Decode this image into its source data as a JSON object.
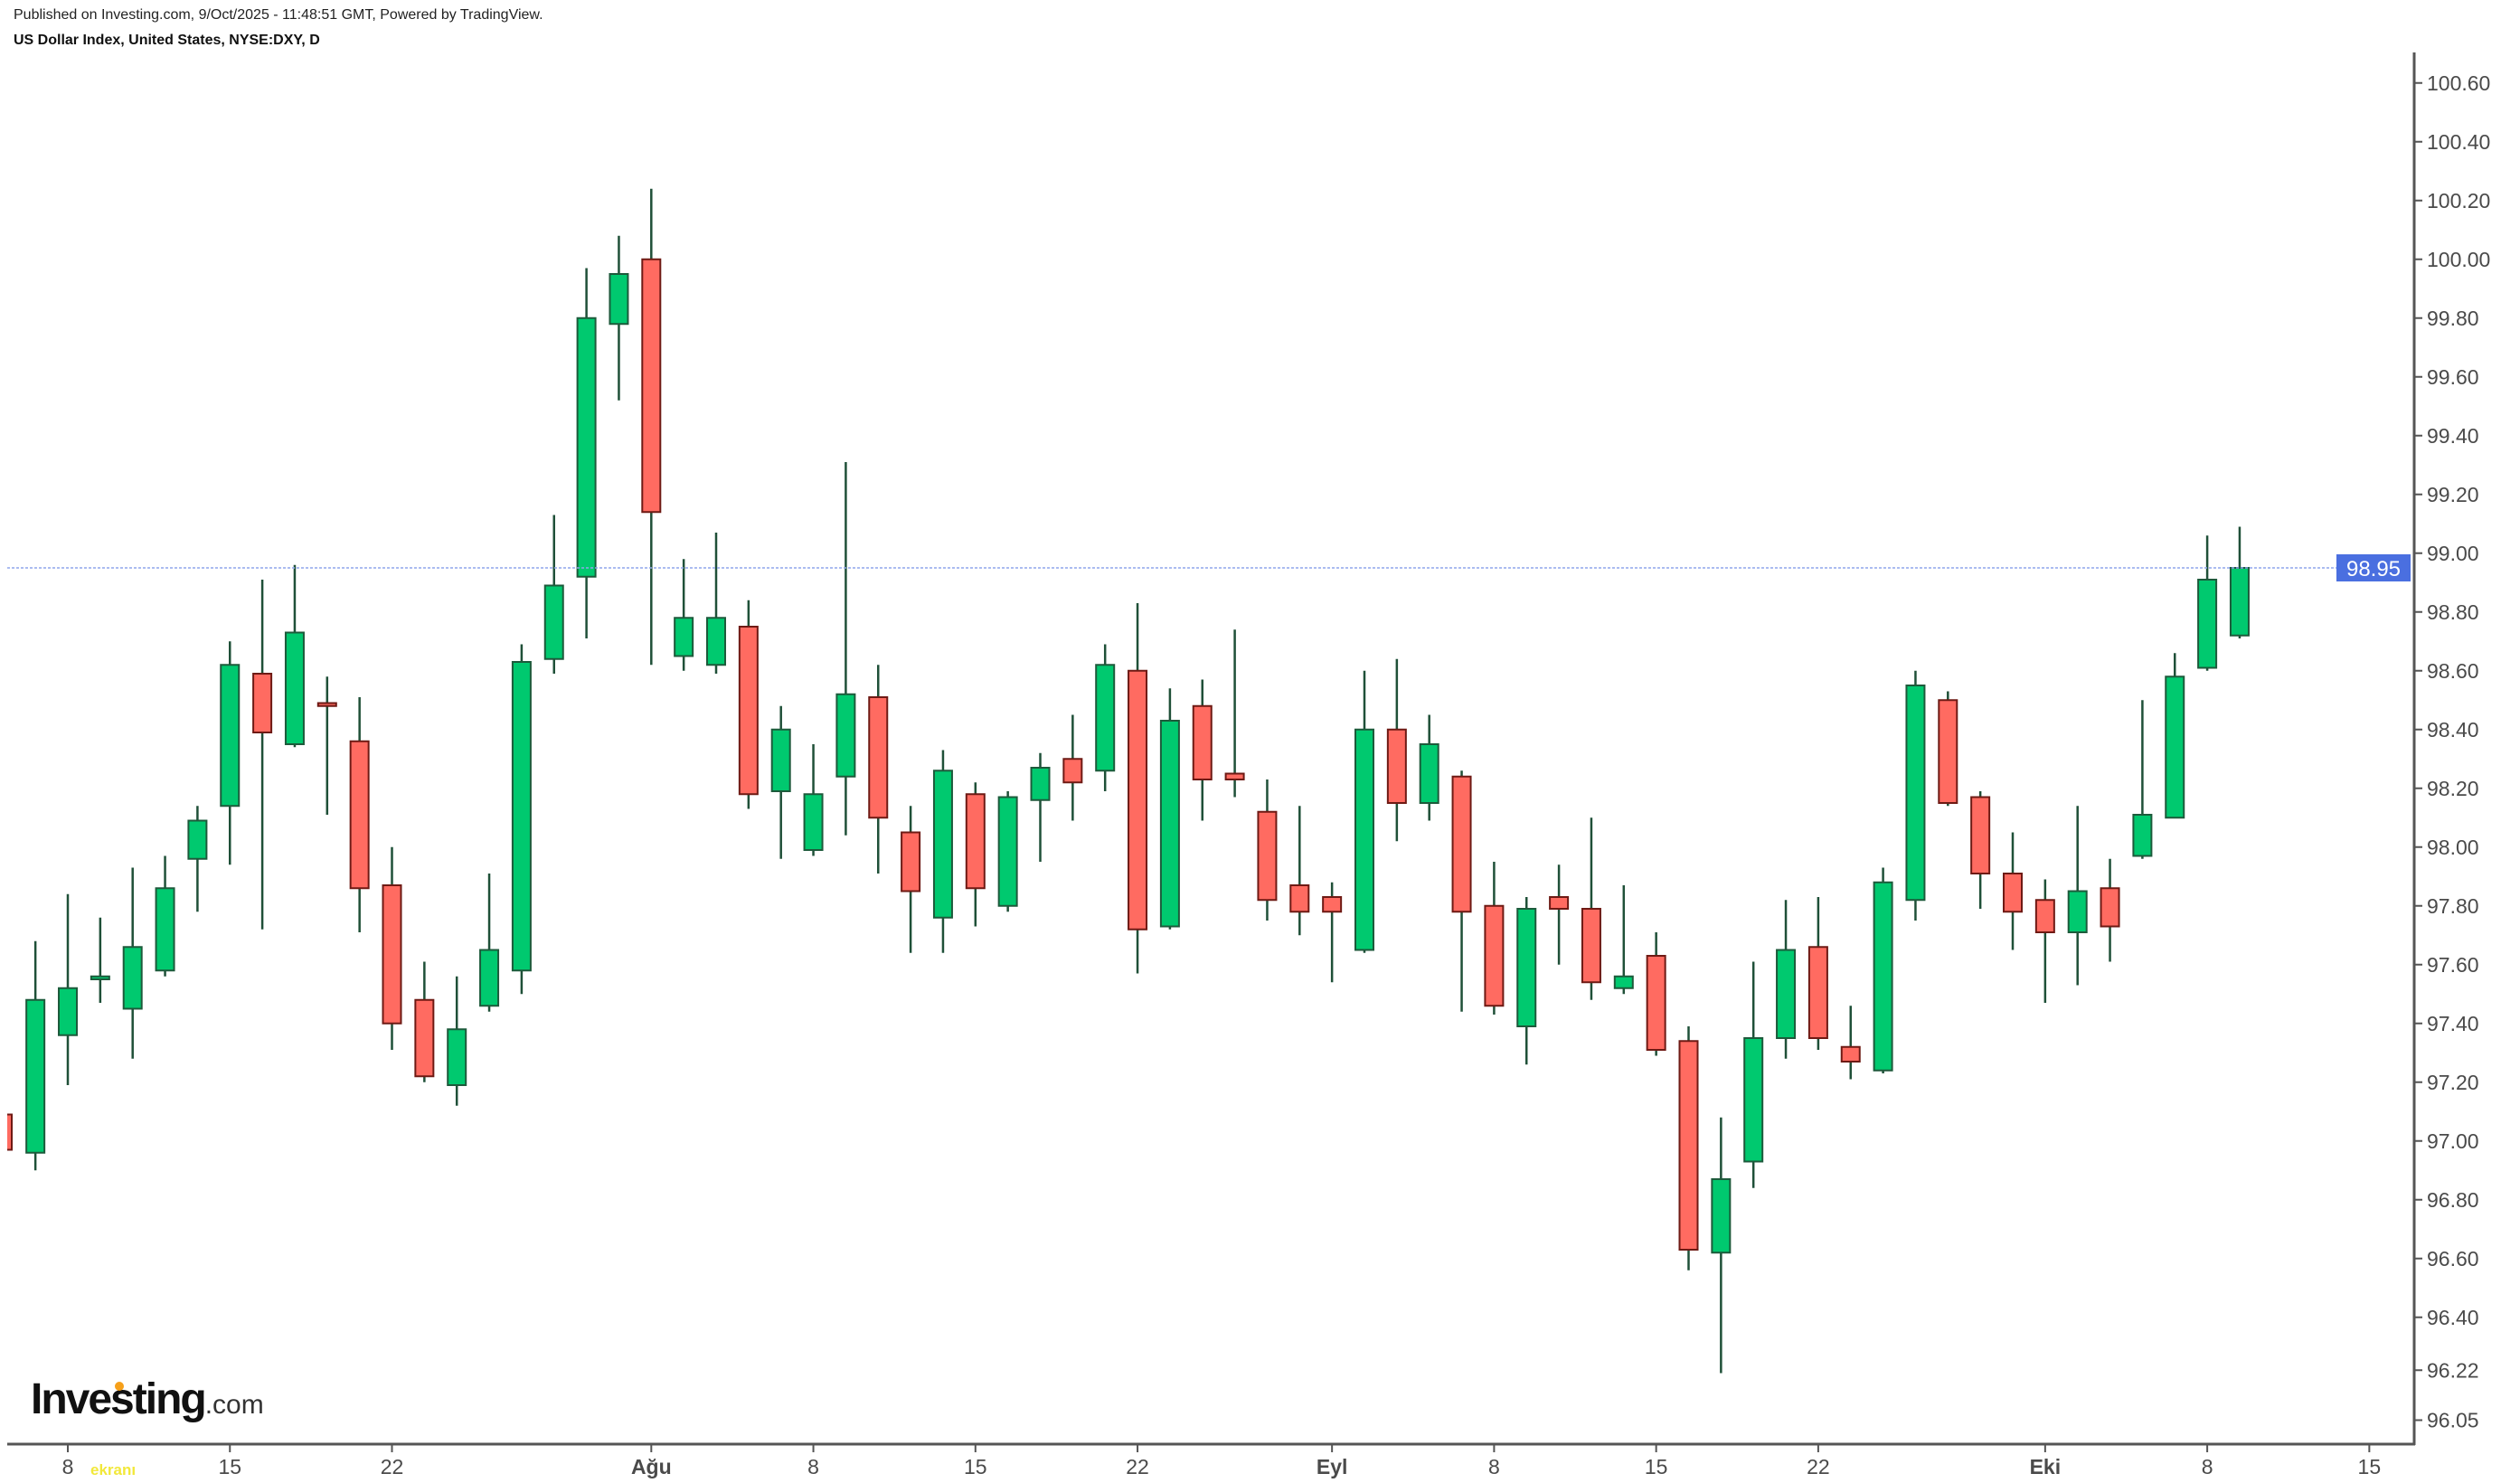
{
  "header": {
    "published": "Published on Investing.com, 9/Oct/2025 - 11:48:51 GMT, Powered by TradingView.",
    "title": "US Dollar Index, United States, NYSE:DXY, D"
  },
  "logo": {
    "main": "Investing",
    "suffix": ".com"
  },
  "watermark": "ekranı",
  "chart_data": {
    "type": "candlestick",
    "title": "US Dollar Index, United States, NYSE:DXY, D",
    "ylim": [
      96.0,
      100.75
    ],
    "grid": false,
    "colors": {
      "up": "#00c96f",
      "down": "#ff6b61",
      "up_border": "#1d5a3b",
      "down_border": "#6e1a14",
      "wick": "#1f5038",
      "price_line": "#8fa6ec",
      "price_label": "#4a6fe0",
      "axis": "#555555"
    },
    "last_price": "98.95",
    "y_ticks": [
      "100.60",
      "100.40",
      "100.20",
      "100.00",
      "99.80",
      "99.60",
      "99.40",
      "99.20",
      "99.00",
      "98.80",
      "98.60",
      "98.40",
      "98.20",
      "98.00",
      "97.80",
      "97.60",
      "97.40",
      "97.20",
      "97.00",
      "96.80",
      "96.60",
      "96.40",
      "96.22",
      "96.05"
    ],
    "x_ticks": [
      {
        "label": "8",
        "date": "2025-07-08",
        "month": false
      },
      {
        "label": "15",
        "date": "2025-07-15",
        "month": false
      },
      {
        "label": "22",
        "date": "2025-07-22",
        "month": false
      },
      {
        "label": "Ağu",
        "date": "2025-08-01",
        "month": true
      },
      {
        "label": "8",
        "date": "2025-08-08",
        "month": false
      },
      {
        "label": "15",
        "date": "2025-08-15",
        "month": false
      },
      {
        "label": "22",
        "date": "2025-08-22",
        "month": false
      },
      {
        "label": "Eyl",
        "date": "2025-09-01",
        "month": true
      },
      {
        "label": "8",
        "date": "2025-09-08",
        "month": false
      },
      {
        "label": "15",
        "date": "2025-09-15",
        "month": false
      },
      {
        "label": "22",
        "date": "2025-09-22",
        "month": false
      },
      {
        "label": "Eki",
        "date": "2025-10-01",
        "month": true
      },
      {
        "label": "8",
        "date": "2025-10-08",
        "month": false
      },
      {
        "label": "15",
        "date": "2025-10-15",
        "month": false
      }
    ],
    "candles_fields": [
      "date",
      "open",
      "high",
      "low",
      "close"
    ],
    "candles": [
      [
        "2025-07-03",
        97.09,
        97.12,
        96.94,
        96.97
      ],
      [
        "2025-07-07",
        96.96,
        97.68,
        96.9,
        97.48
      ],
      [
        "2025-07-08",
        97.36,
        97.84,
        97.19,
        97.52
      ],
      [
        "2025-07-09",
        97.55,
        97.76,
        97.47,
        97.56
      ],
      [
        "2025-07-10",
        97.45,
        97.93,
        97.28,
        97.66
      ],
      [
        "2025-07-11",
        97.58,
        97.97,
        97.56,
        97.86
      ],
      [
        "2025-07-14",
        97.96,
        98.14,
        97.78,
        98.09
      ],
      [
        "2025-07-15",
        98.14,
        98.7,
        97.94,
        98.62
      ],
      [
        "2025-07-16",
        98.59,
        98.91,
        97.72,
        98.39
      ],
      [
        "2025-07-17",
        98.35,
        98.96,
        98.34,
        98.73
      ],
      [
        "2025-07-18",
        98.49,
        98.58,
        98.11,
        98.48
      ],
      [
        "2025-07-21",
        98.36,
        98.51,
        97.71,
        97.86
      ],
      [
        "2025-07-22",
        97.87,
        98.0,
        97.31,
        97.4
      ],
      [
        "2025-07-23",
        97.48,
        97.61,
        97.2,
        97.22
      ],
      [
        "2025-07-24",
        97.19,
        97.56,
        97.12,
        97.38
      ],
      [
        "2025-07-25",
        97.46,
        97.91,
        97.44,
        97.65
      ],
      [
        "2025-07-28",
        97.58,
        98.69,
        97.5,
        98.63
      ],
      [
        "2025-07-29",
        98.64,
        99.13,
        98.59,
        98.89
      ],
      [
        "2025-07-30",
        98.92,
        99.97,
        98.71,
        99.8
      ],
      [
        "2025-07-31",
        99.78,
        100.08,
        99.52,
        99.95
      ],
      [
        "2025-08-01",
        100.0,
        100.24,
        98.62,
        99.14
      ],
      [
        "2025-08-04",
        98.65,
        98.98,
        98.6,
        98.78
      ],
      [
        "2025-08-05",
        98.62,
        99.07,
        98.59,
        98.78
      ],
      [
        "2025-08-06",
        98.75,
        98.84,
        98.13,
        98.18
      ],
      [
        "2025-08-07",
        98.19,
        98.48,
        97.96,
        98.4
      ],
      [
        "2025-08-08",
        97.99,
        98.35,
        97.97,
        98.18
      ],
      [
        "2025-08-11",
        98.24,
        99.31,
        98.04,
        98.52
      ],
      [
        "2025-08-12",
        98.51,
        98.62,
        97.91,
        98.1
      ],
      [
        "2025-08-13",
        98.05,
        98.14,
        97.64,
        97.85
      ],
      [
        "2025-08-14",
        97.76,
        98.33,
        97.64,
        98.26
      ],
      [
        "2025-08-15",
        98.18,
        98.22,
        97.73,
        97.86
      ],
      [
        "2025-08-18",
        97.8,
        98.19,
        97.78,
        98.17
      ],
      [
        "2025-08-19",
        98.16,
        98.32,
        97.95,
        98.27
      ],
      [
        "2025-08-20",
        98.3,
        98.45,
        98.09,
        98.22
      ],
      [
        "2025-08-21",
        98.26,
        98.69,
        98.19,
        98.62
      ],
      [
        "2025-08-22",
        98.6,
        98.83,
        97.57,
        97.72
      ],
      [
        "2025-08-25",
        97.73,
        98.54,
        97.72,
        98.43
      ],
      [
        "2025-08-26",
        98.48,
        98.57,
        98.09,
        98.23
      ],
      [
        "2025-08-27",
        98.25,
        98.74,
        98.17,
        98.23
      ],
      [
        "2025-08-28",
        98.12,
        98.23,
        97.75,
        97.82
      ],
      [
        "2025-08-29",
        97.87,
        98.14,
        97.7,
        97.78
      ],
      [
        "2025-09-01",
        97.83,
        97.88,
        97.54,
        97.78
      ],
      [
        "2025-09-02",
        97.65,
        98.6,
        97.64,
        98.4
      ],
      [
        "2025-09-03",
        98.4,
        98.64,
        98.02,
        98.15
      ],
      [
        "2025-09-04",
        98.15,
        98.45,
        98.09,
        98.35
      ],
      [
        "2025-09-05",
        98.24,
        98.26,
        97.44,
        97.78
      ],
      [
        "2025-09-08",
        97.8,
        97.95,
        97.43,
        97.46
      ],
      [
        "2025-09-09",
        97.39,
        97.83,
        97.26,
        97.79
      ],
      [
        "2025-09-10",
        97.83,
        97.94,
        97.6,
        97.79
      ],
      [
        "2025-09-11",
        97.79,
        98.1,
        97.48,
        97.54
      ],
      [
        "2025-09-12",
        97.52,
        97.87,
        97.5,
        97.56
      ],
      [
        "2025-09-15",
        97.63,
        97.71,
        97.29,
        97.31
      ],
      [
        "2025-09-16",
        97.34,
        97.39,
        96.56,
        96.63
      ],
      [
        "2025-09-17",
        96.62,
        97.08,
        96.21,
        96.87
      ],
      [
        "2025-09-18",
        96.93,
        97.61,
        96.84,
        97.35
      ],
      [
        "2025-09-19",
        97.35,
        97.82,
        97.28,
        97.65
      ],
      [
        "2025-09-22",
        97.66,
        97.83,
        97.31,
        97.35
      ],
      [
        "2025-09-23",
        97.32,
        97.46,
        97.21,
        97.27
      ],
      [
        "2025-09-24",
        97.24,
        97.93,
        97.23,
        97.88
      ],
      [
        "2025-09-25",
        97.82,
        98.6,
        97.75,
        98.55
      ],
      [
        "2025-09-26",
        98.5,
        98.53,
        98.14,
        98.15
      ],
      [
        "2025-09-29",
        98.17,
        98.19,
        97.79,
        97.91
      ],
      [
        "2025-09-30",
        97.91,
        98.05,
        97.65,
        97.78
      ],
      [
        "2025-10-01",
        97.82,
        97.89,
        97.47,
        97.71
      ],
      [
        "2025-10-02",
        97.71,
        98.14,
        97.53,
        97.85
      ],
      [
        "2025-10-03",
        97.86,
        97.96,
        97.61,
        97.73
      ],
      [
        "2025-10-06",
        97.97,
        98.5,
        97.96,
        98.11
      ],
      [
        "2025-10-07",
        98.1,
        98.66,
        98.1,
        98.58
      ],
      [
        "2025-10-08",
        98.61,
        99.06,
        98.6,
        98.91
      ],
      [
        "2025-10-09",
        98.72,
        99.09,
        98.71,
        98.95
      ]
    ]
  }
}
